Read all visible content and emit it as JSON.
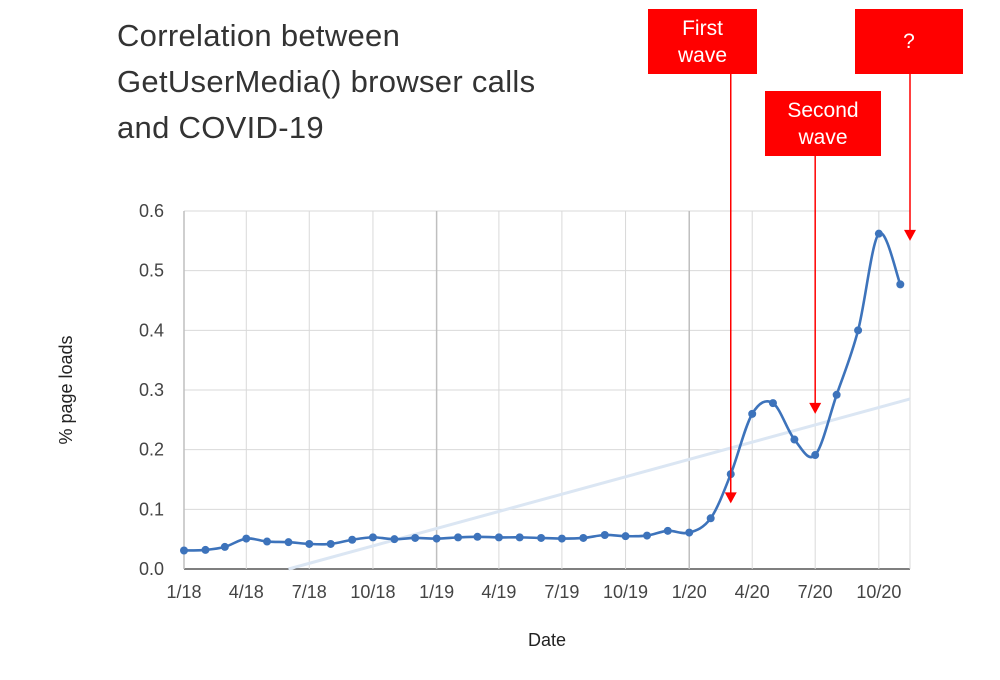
{
  "title_lines": [
    "Correlation between",
    "GetUserMedia() browser calls",
    "and COVID-19"
  ],
  "annotations": [
    {
      "lines": [
        "First",
        "wave"
      ],
      "x": "2020-03-01",
      "arrow_to": 0.11
    },
    {
      "lines": [
        "Second",
        "wave"
      ],
      "x": "2020-07-01",
      "arrow_to": 0.26
    },
    {
      "lines": [
        "?"
      ],
      "x": "2020-11-15",
      "arrow_to": 0.55
    }
  ],
  "colors": {
    "line": "#3d73bb",
    "trend": "#dbe6f3",
    "annotation": "#ff0000",
    "grid": "#d9d9d9",
    "grid_major": "#bfbfbf"
  },
  "chart_data": {
    "type": "line",
    "xlabel": "Date",
    "ylabel": "% page loads",
    "ylim": [
      0,
      0.6
    ],
    "yticks": [
      "0.0",
      "0.1",
      "0.2",
      "0.3",
      "0.4",
      "0.5",
      "0.6"
    ],
    "xticks": [
      {
        "label": "1/18",
        "x": "2018-01-01"
      },
      {
        "label": "4/18",
        "x": "2018-04-01"
      },
      {
        "label": "7/18",
        "x": "2018-07-01"
      },
      {
        "label": "10/18",
        "x": "2018-10-01"
      },
      {
        "label": "1/19",
        "x": "2019-01-01"
      },
      {
        "label": "4/19",
        "x": "2019-04-01"
      },
      {
        "label": "7/19",
        "x": "2019-07-01"
      },
      {
        "label": "10/19",
        "x": "2019-10-01"
      },
      {
        "label": "1/20",
        "x": "2020-01-01"
      },
      {
        "label": "4/20",
        "x": "2020-04-01"
      },
      {
        "label": "7/20",
        "x": "2020-07-01"
      },
      {
        "label": "10/20",
        "x": "2020-10-01"
      }
    ],
    "xlim": [
      "2018-01-01",
      "2020-11-15"
    ],
    "grid": true,
    "legend": "none",
    "series": [
      {
        "x": [
          "2018-01-01",
          "2018-02-01",
          "2018-03-01",
          "2018-04-01",
          "2018-05-01",
          "2018-06-01",
          "2018-07-01",
          "2018-08-01",
          "2018-09-01",
          "2018-10-01",
          "2018-11-01",
          "2018-12-01",
          "2019-01-01",
          "2019-02-01",
          "2019-03-01",
          "2019-04-01",
          "2019-05-01",
          "2019-06-01",
          "2019-07-01",
          "2019-08-01",
          "2019-09-01",
          "2019-10-01",
          "2019-11-01",
          "2019-12-01",
          "2020-01-01",
          "2020-02-01",
          "2020-03-01",
          "2020-04-01",
          "2020-05-01",
          "2020-06-01",
          "2020-07-01",
          "2020-08-01",
          "2020-09-01",
          "2020-10-01",
          "2020-11-01"
        ],
        "values": [
          0.031,
          0.032,
          0.037,
          0.051,
          0.046,
          0.045,
          0.042,
          0.042,
          0.049,
          0.053,
          0.05,
          0.052,
          0.051,
          0.053,
          0.054,
          0.053,
          0.053,
          0.052,
          0.051,
          0.052,
          0.057,
          0.055,
          0.056,
          0.064,
          0.061,
          0.085,
          0.159,
          0.26,
          0.278,
          0.217,
          0.191,
          0.292,
          0.4,
          0.562,
          0.477
        ]
      }
    ],
    "trendline": {
      "x": [
        "2018-06-01",
        "2020-11-15"
      ],
      "values": [
        0,
        0.285
      ]
    }
  }
}
